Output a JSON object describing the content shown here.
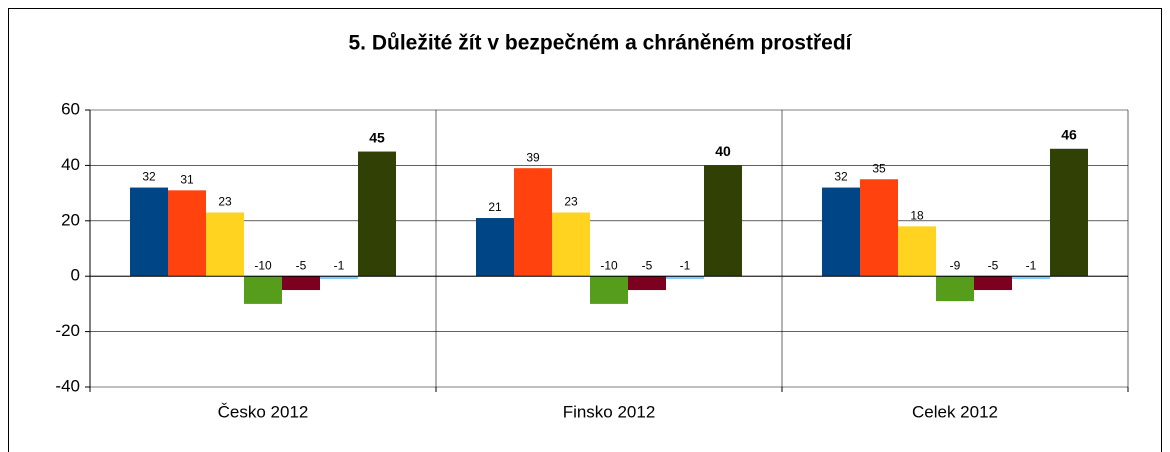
{
  "chart_data": {
    "type": "bar",
    "title": "5. Důležité žít v bezpečném a chráněném prostředí",
    "categories": [
      "Česko 2012",
      "Finsko 2012",
      "Celek 2012"
    ],
    "series": [
      {
        "color": "#004586",
        "values": [
          32,
          21,
          32
        ]
      },
      {
        "color": "#ff420e",
        "values": [
          31,
          39,
          35
        ]
      },
      {
        "color": "#ffd320",
        "values": [
          23,
          23,
          18
        ]
      },
      {
        "color": "#579d1c",
        "values": [
          -10,
          -10,
          -9
        ]
      },
      {
        "color": "#7e0021",
        "values": [
          -5,
          -5,
          -5
        ]
      },
      {
        "color": "#83caff",
        "values": [
          -1,
          -1,
          -1
        ]
      },
      {
        "color": "#314004",
        "values": [
          45,
          40,
          46
        ],
        "label_color": "#ff0000"
      }
    ],
    "ylim": [
      -40,
      60
    ],
    "yticks": [
      -40,
      -20,
      0,
      20,
      40,
      60
    ],
    "grid": true
  }
}
